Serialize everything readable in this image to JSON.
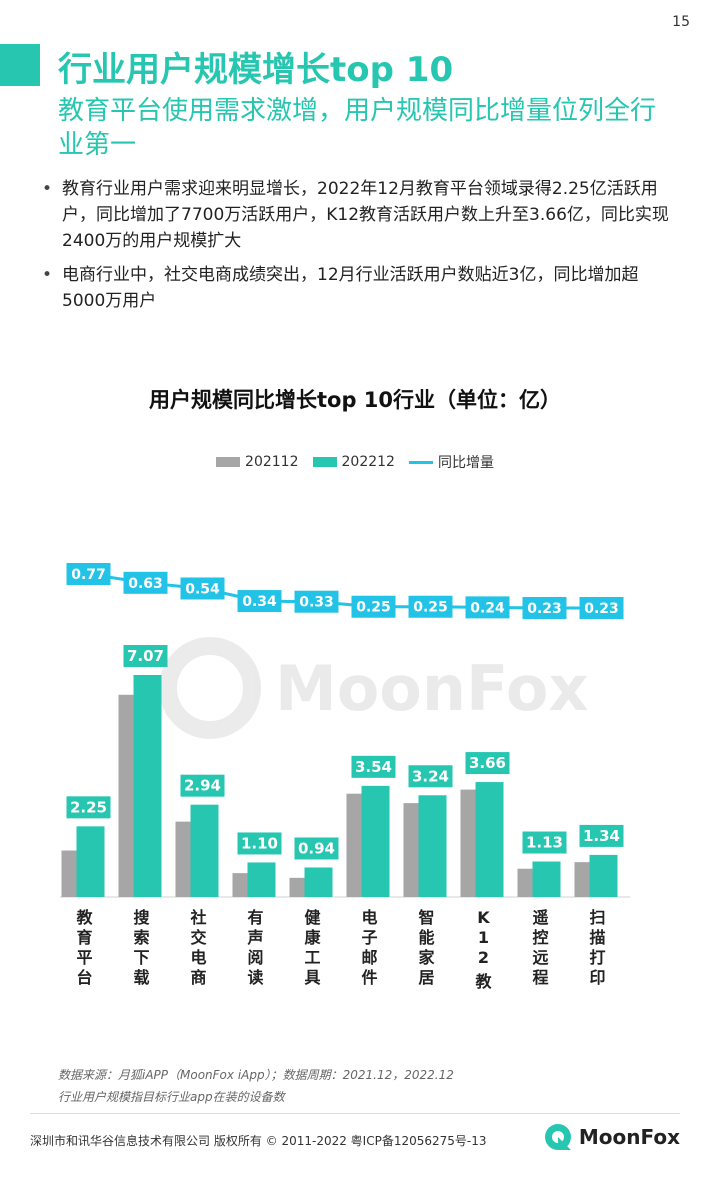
{
  "page_number": "15",
  "title": "行业用户规模增长top 10",
  "subtitle": "教育平台使用需求激增，用户规模同比增量位列全行业第一",
  "bullets": [
    "教育行业用户需求迎来明显增长，2022年12月教育平台领域录得2.25亿活跃用户，同比增加了7700万活跃用户，K12教育活跃用户数上升至3.66亿，同比实现2400万的用户规模扩大",
    "电商行业中，社交电商成绩突出，12月行业活跃用户数贴近3亿，同比增加超5000万用户"
  ],
  "colors": {
    "accent": "#27c6b0",
    "gray_series": "#a6a6a6",
    "teal_series": "#27c6b0",
    "line_series": "#22c3e6"
  },
  "chart_data": {
    "type": "bar",
    "title": "用户规模同比增长top 10行业（单位：亿）",
    "categories": [
      "教育平台",
      "搜索下载",
      "社交电商",
      "有声阅读",
      "健康工具",
      "电子邮件",
      "智能家居",
      "K12 教育",
      "遥控远程",
      "扫描打印"
    ],
    "series": [
      {
        "name": "202112",
        "values": [
          1.48,
          6.44,
          2.4,
          0.76,
          0.61,
          3.29,
          2.99,
          3.42,
          0.9,
          1.11
        ]
      },
      {
        "name": "202212",
        "values": [
          2.25,
          7.07,
          2.94,
          1.1,
          0.94,
          3.54,
          3.24,
          3.66,
          1.13,
          1.34
        ]
      }
    ],
    "line_series": {
      "name": "同比增量",
      "values": [
        0.77,
        0.63,
        0.54,
        0.34,
        0.33,
        0.25,
        0.25,
        0.24,
        0.23,
        0.23
      ]
    },
    "watermark": "MoonFox",
    "legend_position": "top-center"
  },
  "source_note": "数据来源：月狐iAPP（MoonFox iApp）；数据周期：2021.12，2022.12",
  "definition_note": "行业用户规模指目标行业app在装的设备数",
  "footer": "深圳市和讯华谷信息技术有限公司 版权所有 © 2011-2022 粤ICP备12056275号-13",
  "logo_text": "MoonFox"
}
